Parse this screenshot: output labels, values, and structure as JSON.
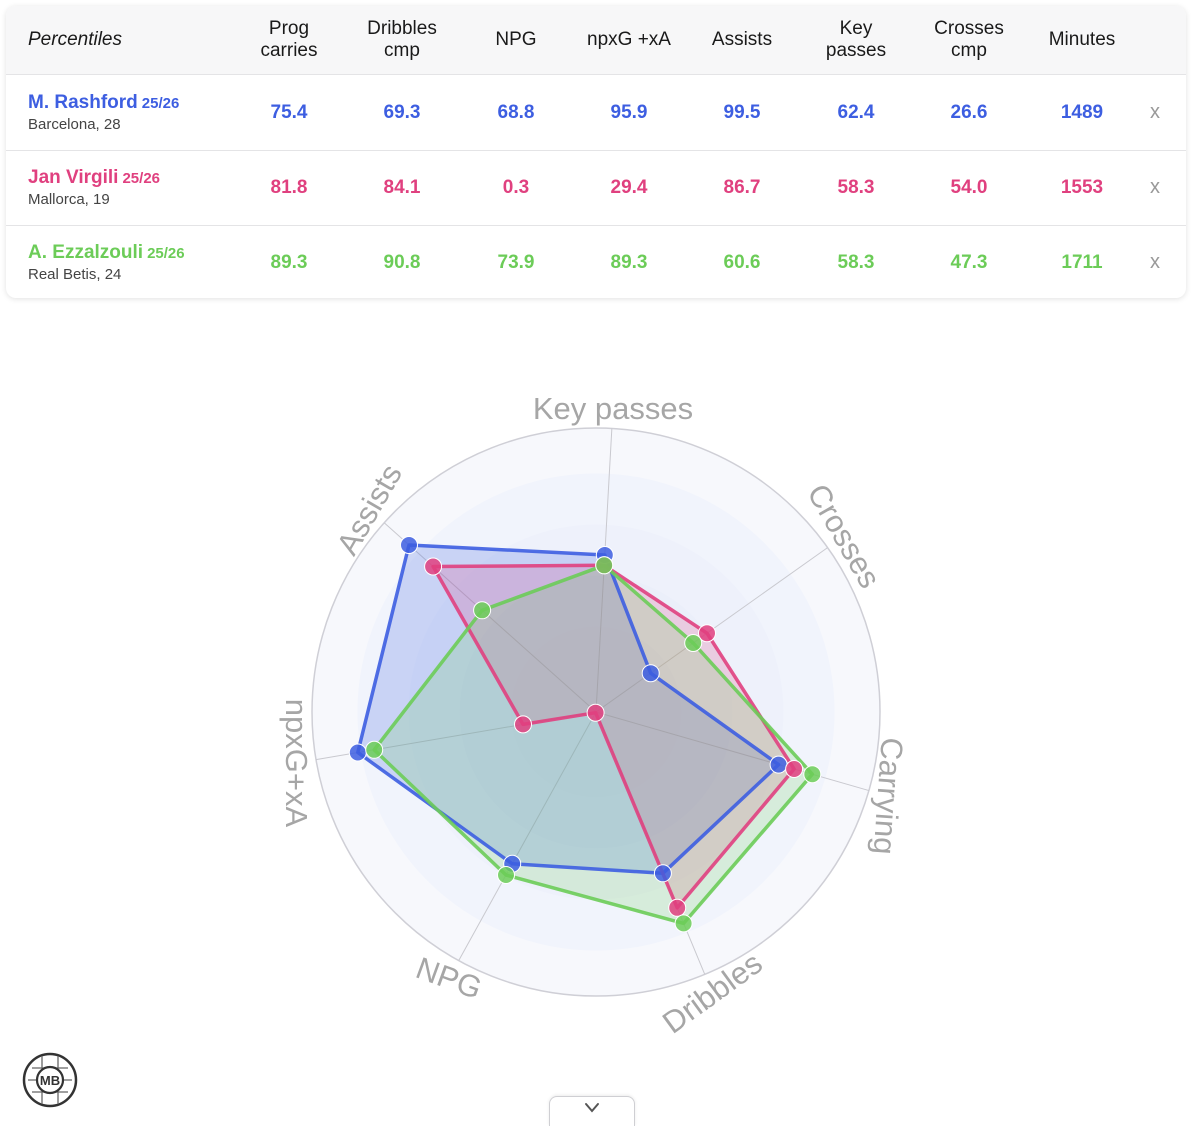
{
  "table": {
    "corner_label": "Percentiles",
    "columns": [
      {
        "line1": "Prog",
        "line2": "carries"
      },
      {
        "line1": "Dribbles",
        "line2": "cmp"
      },
      {
        "line1": "NPG",
        "line2": ""
      },
      {
        "line1": "npxG +xA",
        "line2": ""
      },
      {
        "line1": "Assists",
        "line2": ""
      },
      {
        "line1": "Key",
        "line2": "passes"
      },
      {
        "line1": "Crosses",
        "line2": "cmp"
      },
      {
        "line1": "Minutes",
        "line2": ""
      }
    ],
    "remove_label": "x",
    "players": [
      {
        "name": "M. Rashford",
        "season": "25/26",
        "meta": "Barcelona, 28",
        "color": "#3d5ee1",
        "values": [
          "75.4",
          "69.3",
          "68.8",
          "95.9",
          "99.5",
          "62.4",
          "26.6",
          "1489"
        ]
      },
      {
        "name": "Jan Virgili",
        "season": "25/26",
        "meta": "Mallorca, 19",
        "color": "#e0407f",
        "values": [
          "81.8",
          "84.1",
          "0.3",
          "29.4",
          "86.7",
          "58.3",
          "54.0",
          "1553"
        ]
      },
      {
        "name": "A. Ezzalzouli",
        "season": "25/26",
        "meta": "Real Betis, 24",
        "color": "#6ccc58",
        "values": [
          "89.3",
          "90.8",
          "73.9",
          "89.3",
          "60.6",
          "58.3",
          "47.3",
          "1711"
        ]
      }
    ]
  },
  "chart_data": {
    "type": "radar",
    "axes": [
      "Key passes",
      "Crosses",
      "Carrying",
      "Dribbles",
      "NPG",
      "npxG+xA",
      "Assists"
    ],
    "rlim": [
      0,
      100
    ],
    "series": [
      {
        "name": "M. Rashford",
        "color": "#3d5ee1",
        "values": [
          62.4,
          26.6,
          75.4,
          69.3,
          68.8,
          95.9,
          99.5
        ]
      },
      {
        "name": "Jan Virgili",
        "color": "#e0407f",
        "values": [
          58.3,
          54.0,
          81.8,
          84.1,
          0.3,
          29.4,
          86.7
        ]
      },
      {
        "name": "A. Ezzalzouli",
        "color": "#6ccc58",
        "values": [
          58.3,
          47.3,
          89.3,
          90.8,
          73.9,
          89.3,
          60.6
        ]
      }
    ]
  },
  "logo": {
    "text": "MB",
    "icon": "mb-logo-icon"
  },
  "toggle": {
    "icon": "chevron-down-icon"
  }
}
